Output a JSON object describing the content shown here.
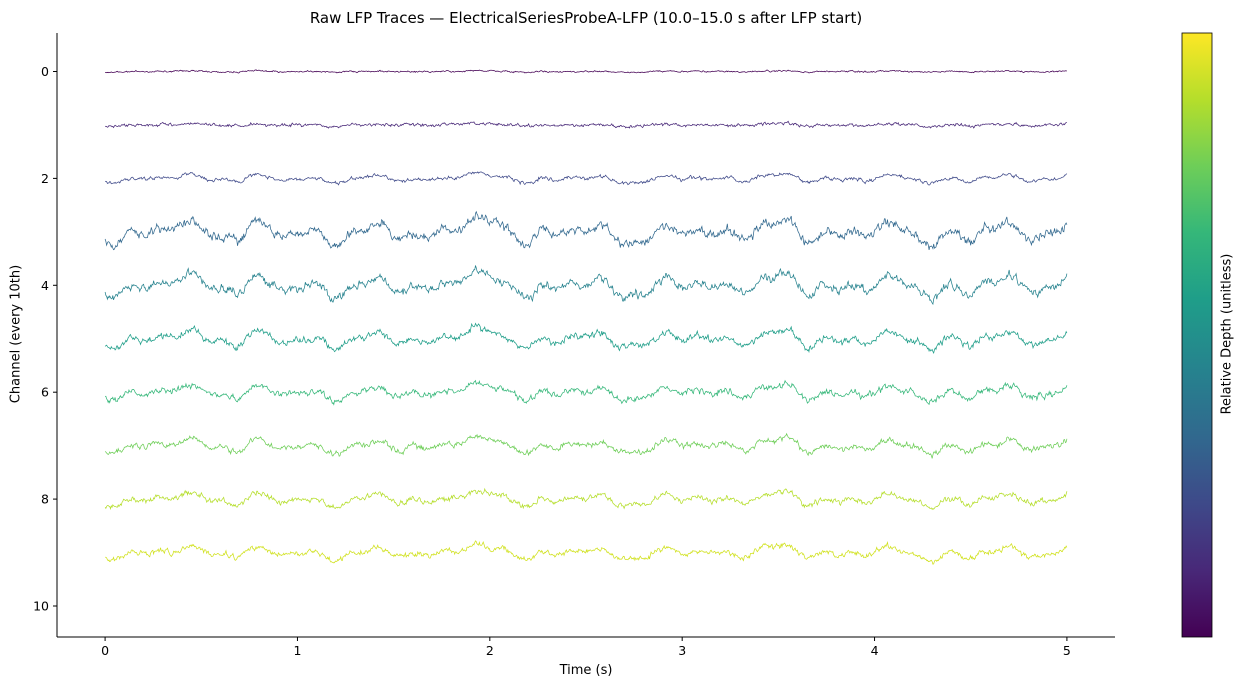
{
  "chart_data": {
    "type": "line",
    "title": "Raw LFP Traces — ElectricalSeriesProbeA-LFP (10.0–15.0 s after LFP start)",
    "xlabel": "Time (s)",
    "ylabel": "Channel (every 10th)",
    "colorbar_label": "Relative Depth (unitless)",
    "colormap": "viridis",
    "xlim": [
      -0.25,
      5.25
    ],
    "ylim": [
      10.58,
      -0.72
    ],
    "y_inverted": true,
    "x_ticks": [
      0,
      1,
      2,
      3,
      4,
      5
    ],
    "y_ticks": [
      0,
      2,
      4,
      6,
      8,
      10
    ],
    "grid": false,
    "legend": "none",
    "series": [
      {
        "offset": 0,
        "color": "#440154",
        "noise": 0.022,
        "slow": 0.018
      },
      {
        "offset": 1,
        "color": "#482878",
        "noise": 0.045,
        "slow": 0.035
      },
      {
        "offset": 2,
        "color": "#3e4989",
        "noise": 0.05,
        "slow": 0.12
      },
      {
        "offset": 3,
        "color": "#31688e",
        "noise": 0.13,
        "slow": 0.32
      },
      {
        "offset": 4,
        "color": "#26828e",
        "noise": 0.12,
        "slow": 0.3
      },
      {
        "offset": 5,
        "color": "#1f9e89",
        "noise": 0.1,
        "slow": 0.24
      },
      {
        "offset": 6,
        "color": "#35b779",
        "noise": 0.09,
        "slow": 0.2
      },
      {
        "offset": 7,
        "color": "#6ece58",
        "noise": 0.085,
        "slow": 0.19
      },
      {
        "offset": 8,
        "color": "#b5de2b",
        "noise": 0.08,
        "slow": 0.18
      },
      {
        "offset": 9,
        "color": "#d0e11c",
        "noise": 0.08,
        "slow": 0.18
      }
    ],
    "duration_s": 5,
    "n_samples": 1250
  }
}
